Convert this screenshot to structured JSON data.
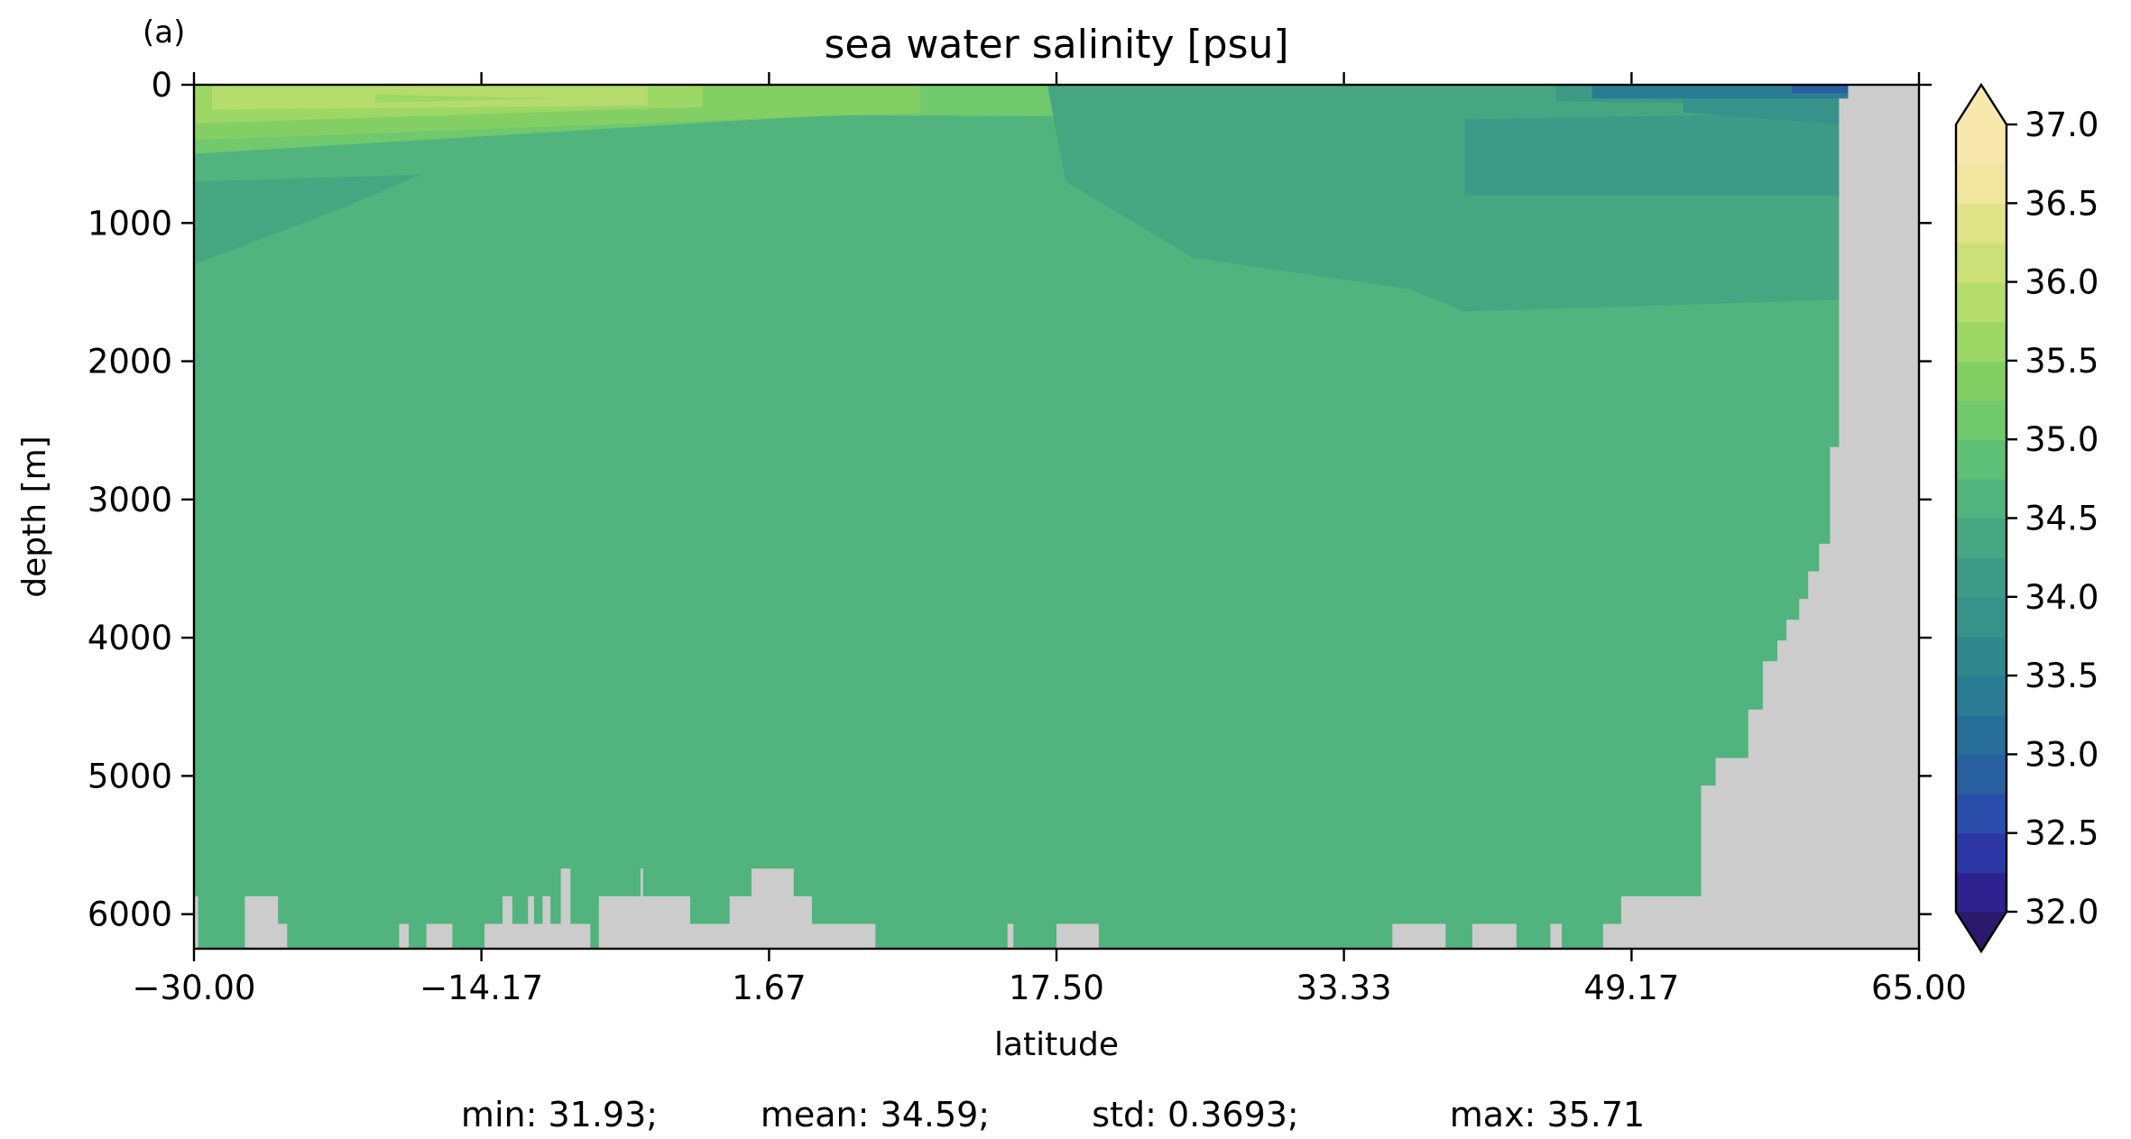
{
  "panel_label": "(a)",
  "stats": {
    "min": "min: 31.93;",
    "mean": "mean: 34.59;",
    "std": "std: 0.3693;",
    "max": "max: 35.71"
  },
  "colors": {
    "land": "#cccccc",
    "bulk_water": "#3d9a86",
    "colormap": [
      "#2b1a6c",
      "#2f228f",
      "#2c37a5",
      "#2a4ea9",
      "#275f9f",
      "#276e98",
      "#2b7c92",
      "#30888d",
      "#37938a",
      "#3d9a86",
      "#47a682",
      "#51b37d",
      "#5ebf76",
      "#71c96d",
      "#84cf63",
      "#9dd766",
      "#b6dc6e",
      "#ccdf78",
      "#e0e388",
      "#f2e59d",
      "#f9e8ad"
    ]
  },
  "chart_data": {
    "type": "heatmap",
    "title": "sea water salinity [psu]",
    "xlabel": "latitude",
    "ylabel": "depth [m]",
    "xlim": [
      -30.0,
      65.0
    ],
    "ylim": [
      6250,
      0
    ],
    "y_inverted": true,
    "x_ticks": [
      -30.0,
      -14.17,
      1.67,
      17.5,
      33.33,
      49.17,
      65.0
    ],
    "x_tick_labels": [
      "−30.00",
      "−14.17",
      "1.67",
      "17.50",
      "33.33",
      "49.17",
      "65.00"
    ],
    "y_ticks": [
      0,
      1000,
      2000,
      3000,
      4000,
      5000,
      6000
    ],
    "y_tick_labels": [
      "0",
      "1000",
      "2000",
      "3000",
      "4000",
      "5000",
      "6000"
    ],
    "colorbar": {
      "min": 32.0,
      "max": 37.0,
      "step": 0.25,
      "extend": "both",
      "ticks": [
        32.0,
        32.5,
        33.0,
        33.5,
        34.0,
        34.5,
        35.0,
        35.5,
        36.0,
        36.5,
        37.0
      ],
      "tick_labels": [
        "32.0",
        "32.5",
        "33.0",
        "33.5",
        "34.0",
        "34.5",
        "35.0",
        "35.5",
        "36.0",
        "36.5",
        "37.0"
      ]
    },
    "bulk_value": 34.6,
    "water_layers": [
      {
        "value": 35.0,
        "points": [
          [
            -30,
            0
          ],
          [
            24,
            0
          ],
          [
            24,
            230
          ],
          [
            5,
            220
          ],
          [
            -30,
            500
          ]
        ]
      },
      {
        "value": 35.25,
        "points": [
          [
            -30,
            0
          ],
          [
            10,
            0
          ],
          [
            10,
            200
          ],
          [
            -30,
            400
          ]
        ]
      },
      {
        "value": 35.5,
        "points": [
          [
            -30,
            0
          ],
          [
            -2,
            0
          ],
          [
            -2,
            160
          ],
          [
            -30,
            280
          ]
        ]
      },
      {
        "value": 35.75,
        "points": [
          [
            -29,
            0
          ],
          [
            -5,
            0
          ],
          [
            -5,
            150
          ],
          [
            -29,
            180
          ]
        ]
      },
      {
        "value": 35.5,
        "points": [
          [
            -20,
            70
          ],
          [
            -10,
            100
          ],
          [
            -20,
            130
          ]
        ]
      },
      {
        "value": 34.25,
        "points": [
          [
            -30,
            700
          ],
          [
            -17.5,
            650
          ],
          [
            -22,
            900
          ],
          [
            -30,
            1300
          ]
        ]
      },
      {
        "value": 34.25,
        "points": [
          [
            17,
            0
          ],
          [
            62,
            0
          ],
          [
            62,
            1550
          ],
          [
            40,
            1640
          ],
          [
            37,
            1480
          ],
          [
            25,
            1250
          ],
          [
            18,
            700
          ]
        ]
      },
      {
        "value": 34.0,
        "points": [
          [
            40,
            250
          ],
          [
            62,
            200
          ],
          [
            62,
            800
          ],
          [
            40,
            800
          ]
        ]
      },
      {
        "value": 34.0,
        "points": [
          [
            45,
            0
          ],
          [
            62,
            0
          ],
          [
            62,
            150
          ],
          [
            45,
            120
          ]
        ]
      },
      {
        "value": 33.75,
        "points": [
          [
            52,
            0
          ],
          [
            62,
            0
          ],
          [
            62,
            300
          ],
          [
            52,
            200
          ]
        ]
      },
      {
        "value": 33.25,
        "points": [
          [
            47,
            0
          ],
          [
            61.5,
            0
          ],
          [
            61.5,
            100
          ],
          [
            47,
            100
          ]
        ]
      },
      {
        "value": 32.75,
        "points": [
          [
            58,
            0
          ],
          [
            61.5,
            0
          ],
          [
            61.5,
            60
          ],
          [
            58,
            60
          ]
        ]
      }
    ],
    "land_bars": [
      [
        -30.0,
        -29.8,
        5870
      ],
      [
        -27.2,
        -25.4,
        5870
      ],
      [
        -25.4,
        -24.9,
        6070
      ],
      [
        -18.7,
        -18.2,
        6070
      ],
      [
        -17.2,
        -15.8,
        6070
      ],
      [
        -14.0,
        -13.0,
        6070
      ],
      [
        -13.0,
        -12.5,
        5870
      ],
      [
        -12.5,
        -11.6,
        6070
      ],
      [
        -11.6,
        -11.3,
        5870
      ],
      [
        -11.3,
        -10.8,
        6070
      ],
      [
        -10.8,
        -10.4,
        5870
      ],
      [
        -10.4,
        -9.8,
        6070
      ],
      [
        -9.8,
        -9.3,
        5670
      ],
      [
        -9.3,
        -8.2,
        6070
      ],
      [
        -7.7,
        -5.4,
        5870
      ],
      [
        -5.4,
        -5.3,
        5670
      ],
      [
        -5.3,
        -2.7,
        5870
      ],
      [
        -2.7,
        -0.5,
        6070
      ],
      [
        -0.5,
        0.7,
        5870
      ],
      [
        0.7,
        1.8,
        5670
      ],
      [
        1.8,
        3.0,
        5670
      ],
      [
        3.0,
        4.0,
        5870
      ],
      [
        4.0,
        7.5,
        6070
      ],
      [
        14.8,
        15.1,
        6070
      ],
      [
        17.5,
        19.8,
        6070
      ],
      [
        36.0,
        38.9,
        6070
      ],
      [
        40.4,
        42.8,
        6070
      ],
      [
        44.7,
        45.3,
        6070
      ],
      [
        47.6,
        48.6,
        6070
      ],
      [
        48.6,
        50.9,
        5870
      ],
      [
        50.9,
        53.0,
        5870
      ],
      [
        53.0,
        53.8,
        5070
      ],
      [
        53.8,
        55.6,
        4870
      ],
      [
        55.6,
        56.4,
        4520
      ],
      [
        56.4,
        57.2,
        4170
      ],
      [
        57.2,
        57.7,
        4020
      ],
      [
        57.7,
        58.4,
        3870
      ],
      [
        58.4,
        58.9,
        3720
      ],
      [
        58.9,
        59.5,
        3520
      ],
      [
        59.5,
        60.1,
        3320
      ],
      [
        60.1,
        60.6,
        2620
      ],
      [
        60.6,
        61.1,
        100
      ],
      [
        61.1,
        65.0,
        0
      ]
    ]
  }
}
